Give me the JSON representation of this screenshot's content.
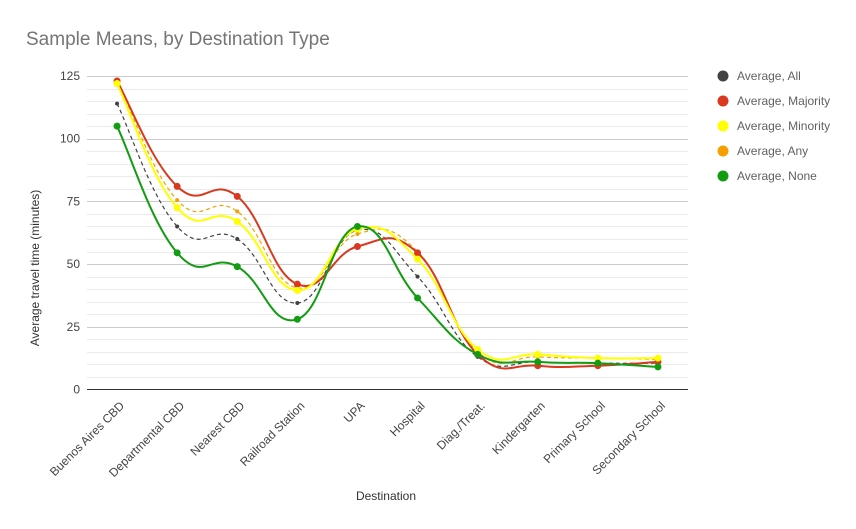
{
  "chart_data": {
    "type": "line",
    "title": "Sample Means, by Destination Type",
    "xlabel": "Destination",
    "ylabel": "Average travel time (minutes)",
    "ylim": [
      0,
      125
    ],
    "yticks": [
      0,
      25,
      50,
      75,
      100,
      125
    ],
    "grid": true,
    "legend_position": "right",
    "categories": [
      "Buenos Aires CBD",
      "Departmental CBD",
      "Nearest CBD",
      "Railroad Station",
      "UPA",
      "Hospital",
      "Diag./Treat.",
      "Kindergarten",
      "Primary School",
      "Secondary School"
    ],
    "series": [
      {
        "name": "Average, All",
        "color": "#424242",
        "dashed": true,
        "marker": "small",
        "values": [
          114,
          65,
          60,
          34.5,
          63.5,
          45,
          13,
          11,
          10.5,
          10.5
        ]
      },
      {
        "name": "Average, Majority",
        "color": "#d9391f",
        "dashed": false,
        "marker": "large",
        "values": [
          123,
          81,
          77,
          42,
          57,
          54.5,
          14,
          9.5,
          9.5,
          11
        ]
      },
      {
        "name": "Average, Minority",
        "color": "#ffff00",
        "dashed": false,
        "marker": "large",
        "values": [
          122,
          72.5,
          67,
          39.5,
          64,
          52,
          16,
          14,
          12.5,
          12.5
        ]
      },
      {
        "name": "Average, Any",
        "color": "#f5a000",
        "dashed": true,
        "marker": "small",
        "values": [
          123.5,
          75.5,
          71,
          40.5,
          62,
          55,
          15,
          13,
          12.5,
          12
        ]
      },
      {
        "name": "Average, None",
        "color": "#119c11",
        "dashed": false,
        "marker": "large",
        "values": [
          105,
          54.5,
          49,
          28,
          65,
          36.5,
          14,
          11,
          10.5,
          9
        ]
      }
    ]
  }
}
